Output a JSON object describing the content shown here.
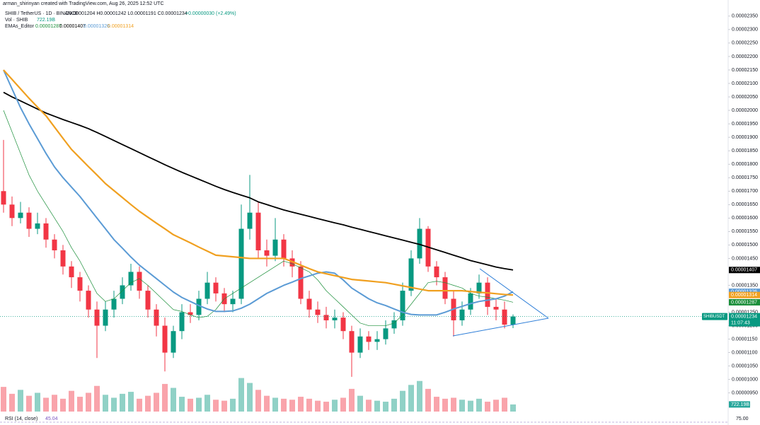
{
  "chart_data": {
    "type": "candlestick",
    "header": "arman_shirinyan created with TradingView.com, Aug 26, 2025 12:52 UTC",
    "symbol": "SHIB / TetherUS · 1D · BINANCE",
    "ohlc_text": "O0.00001204 H0.00001242 L0.00001191 C0.00001234",
    "change_text": "+0.00000030 (+2.49%)",
    "indicator_name": "EMAs_Editor",
    "volume_name": "Vol · SHIB",
    "rsi_name": "RSI (14, close)",
    "rsi_value": "45.04",
    "rsi_tick": "75.00",
    "last_price": {
      "symbol_label": "SHIBUSDT",
      "label": "0.00001234",
      "countdown": "11:07:43"
    },
    "up_color": "#089981",
    "down_color": "#f23645",
    "grid": false,
    "ylim": [
      8.6e-06,
      2.41e-05
    ],
    "yticks": [
      {
        "value": 2.35e-05,
        "label": "0.00002350"
      },
      {
        "value": 2.3e-05,
        "label": "0.00002300"
      },
      {
        "value": 2.25e-05,
        "label": "0.00002250"
      },
      {
        "value": 2.2e-05,
        "label": "0.00002200"
      },
      {
        "value": 2.15e-05,
        "label": "0.00002150"
      },
      {
        "value": 2.1e-05,
        "label": "0.00002100"
      },
      {
        "value": 2.05e-05,
        "label": "0.00002050"
      },
      {
        "value": 2e-05,
        "label": "0.00002000"
      },
      {
        "value": 1.95e-05,
        "label": "0.00001950"
      },
      {
        "value": 1.9e-05,
        "label": "0.00001900"
      },
      {
        "value": 1.85e-05,
        "label": "0.00001850"
      },
      {
        "value": 1.8e-05,
        "label": "0.00001800"
      },
      {
        "value": 1.75e-05,
        "label": "0.00001750"
      },
      {
        "value": 1.7e-05,
        "label": "0.00001700"
      },
      {
        "value": 1.65e-05,
        "label": "0.00001650"
      },
      {
        "value": 1.6e-05,
        "label": "0.00001600"
      },
      {
        "value": 1.55e-05,
        "label": "0.00001550"
      },
      {
        "value": 1.5e-05,
        "label": "0.00001500"
      },
      {
        "value": 1.45e-05,
        "label": "0.00001450"
      },
      {
        "value": 1.35e-05,
        "label": "0.00001350"
      },
      {
        "value": 1.25e-05,
        "label": "0.00001250"
      },
      {
        "value": 1.2e-05,
        "label": "0.00001200"
      },
      {
        "value": 1.15e-05,
        "label": "0.00001150"
      },
      {
        "value": 1.1e-05,
        "label": "0.00001100"
      },
      {
        "value": 1.05e-05,
        "label": "0.00001050"
      },
      {
        "value": 1e-05,
        "label": "0.00001000"
      },
      {
        "value": 9.5e-06,
        "label": "0.00000950"
      }
    ],
    "candles": {
      "open": [
        1.7e-05,
        1.65e-05,
        1.6e-05,
        1.62e-05,
        1.56e-05,
        1.58e-05,
        1.52e-05,
        1.48e-05,
        1.42e-05,
        1.38e-05,
        1.33e-05,
        1.26e-05,
        1.2e-05,
        1.26e-05,
        1.3e-05,
        1.35e-05,
        1.4e-05,
        1.33e-05,
        1.26e-05,
        1.2e-05,
        1.1e-05,
        1.18e-05,
        1.25e-05,
        1.24e-05,
        1.3e-05,
        1.36e-05,
        1.32e-05,
        1.28e-05,
        1.3e-05,
        1.56e-05,
        1.62e-05,
        1.48e-05,
        1.46e-05,
        1.52e-05,
        1.45e-05,
        1.42e-05,
        1.3e-05,
        1.26e-05,
        1.24e-05,
        1.22e-05,
        1.23e-05,
        1.18e-05,
        1.1e-05,
        1.16e-05,
        1.14e-05,
        1.15e-05,
        1.19e-05,
        1.22e-05,
        1.33e-05,
        1.45e-05,
        1.56e-05,
        1.42e-05,
        1.38e-05,
        1.3e-05,
        1.22e-05,
        1.26e-05,
        1.32e-05,
        1.36e-05,
        1.27e-05,
        1.26e-05,
        1.204e-05
      ],
      "high": [
        1.89e-05,
        1.68e-05,
        1.66e-05,
        1.64e-05,
        1.62e-05,
        1.6e-05,
        1.54e-05,
        1.5e-05,
        1.44e-05,
        1.4e-05,
        1.35e-05,
        1.29e-05,
        1.29e-05,
        1.33e-05,
        1.38e-05,
        1.43e-05,
        1.42e-05,
        1.35e-05,
        1.28e-05,
        1.23e-05,
        1.2e-05,
        1.28e-05,
        1.28e-05,
        1.33e-05,
        1.4e-05,
        1.38e-05,
        1.34e-05,
        1.33e-05,
        1.65e-05,
        1.76e-05,
        1.66e-05,
        1.52e-05,
        1.6e-05,
        1.54e-05,
        1.48e-05,
        1.44e-05,
        1.33e-05,
        1.29e-05,
        1.27e-05,
        1.26e-05,
        1.25e-05,
        1.2e-05,
        1.19e-05,
        1.18e-05,
        1.18e-05,
        1.22e-05,
        1.25e-05,
        1.36e-05,
        1.48e-05,
        1.6e-05,
        1.57e-05,
        1.44e-05,
        1.4e-05,
        1.33e-05,
        1.29e-05,
        1.34e-05,
        1.39e-05,
        1.38e-05,
        1.3e-05,
        1.29e-05,
        1.242e-05
      ],
      "low": [
        1.62e-05,
        1.57e-05,
        1.58e-05,
        1.53e-05,
        1.54e-05,
        1.49e-05,
        1.45e-05,
        1.39e-05,
        1.34e-05,
        1.29e-05,
        1.23e-05,
        1.08e-05,
        1.18e-05,
        1.23e-05,
        1.28e-05,
        1.33e-05,
        1.3e-05,
        1.23e-05,
        1.16e-05,
        1.03e-05,
        1.08e-05,
        1.15e-05,
        1.21e-05,
        1.22e-05,
        1.28e-05,
        1.29e-05,
        1.25e-05,
        1.25e-05,
        1.28e-05,
        1.52e-05,
        1.45e-05,
        1.42e-05,
        1.44e-05,
        1.42e-05,
        1.38e-05,
        1.28e-05,
        1.23e-05,
        1.21e-05,
        1.19e-05,
        1.19e-05,
        1.15e-05,
        1.01e-05,
        1.08e-05,
        1.11e-05,
        1.11e-05,
        1.13e-05,
        1.17e-05,
        1.2e-05,
        1.31e-05,
        1.43e-05,
        1.4e-05,
        1.35e-05,
        1.28e-05,
        1.16e-05,
        1.2e-05,
        1.24e-05,
        1.3e-05,
        1.24e-05,
        1.22e-05,
        1.19e-05,
        1.191e-05
      ],
      "close": [
        1.65e-05,
        1.6e-05,
        1.62e-05,
        1.56e-05,
        1.58e-05,
        1.52e-05,
        1.48e-05,
        1.42e-05,
        1.38e-05,
        1.33e-05,
        1.26e-05,
        1.2e-05,
        1.26e-05,
        1.3e-05,
        1.35e-05,
        1.4e-05,
        1.33e-05,
        1.26e-05,
        1.2e-05,
        1.1e-05,
        1.18e-05,
        1.25e-05,
        1.24e-05,
        1.3e-05,
        1.36e-05,
        1.32e-05,
        1.28e-05,
        1.3e-05,
        1.56e-05,
        1.62e-05,
        1.48e-05,
        1.46e-05,
        1.52e-05,
        1.45e-05,
        1.42e-05,
        1.3e-05,
        1.26e-05,
        1.24e-05,
        1.22e-05,
        1.23e-05,
        1.18e-05,
        1.1e-05,
        1.16e-05,
        1.14e-05,
        1.15e-05,
        1.19e-05,
        1.22e-05,
        1.33e-05,
        1.45e-05,
        1.56e-05,
        1.42e-05,
        1.38e-05,
        1.3e-05,
        1.22e-05,
        1.26e-05,
        1.32e-05,
        1.36e-05,
        1.27e-05,
        1.26e-05,
        1.204e-05,
        1.234e-05
      ]
    },
    "volume": {
      "vlim": [
        0,
        4300000000000.0
      ],
      "values": [
        2500000000000.0,
        1800000000000.0,
        2200000000000.0,
        1600000000000.0,
        1900000000000.0,
        1400000000000.0,
        1700000000000.0,
        1300000000000.0,
        2100000000000.0,
        1500000000000.0,
        1900000000000.0,
        2600000000000.0,
        1700000000000.0,
        1400000000000.0,
        1800000000000.0,
        2000000000000.0,
        1300000000000.0,
        1600000000000.0,
        1900000000000.0,
        2800000000000.0,
        2400000000000.0,
        1500000000000.0,
        1300000000000.0,
        1400000000000.0,
        1700000000000.0,
        1200000000000.0,
        1100000000000.0,
        1300000000000.0,
        3400000000000.0,
        2900000000000.0,
        2200000000000.0,
        1600000000000.0,
        1400000000000.0,
        1300000000000.0,
        1200000000000.0,
        1500000000000.0,
        1300000000000.0,
        1100000000000.0,
        1000000000000.0,
        1200000000000.0,
        1400000000000.0,
        2300000000000.0,
        1600000000000.0,
        1200000000000.0,
        1100000000000.0,
        1000000000000.0,
        1300000000000.0,
        2100000000000.0,
        2700000000000.0,
        3100000000000.0,
        2300000000000.0,
        1500000000000.0,
        1300000000000.0,
        1400000000000.0,
        1200000000000.0,
        1100000000000.0,
        1300000000000.0,
        1000000000000.0,
        1200000000000.0,
        1400000000000.0,
        722190000000.0
      ],
      "last_label": "722.19B"
    },
    "series": [
      {
        "color": "#1b8f3a",
        "width": 0.7,
        "last_label": "0.00001287",
        "values": [
          2e-05,
          1.92e-05,
          1.84e-05,
          1.76e-05,
          1.7e-05,
          1.65e-05,
          1.6e-05,
          1.55e-05,
          1.49e-05,
          1.44e-05,
          1.38e-05,
          1.32e-05,
          1.29e-05,
          1.3e-05,
          1.33e-05,
          1.36e-05,
          1.375e-05,
          1.35e-05,
          1.32e-05,
          1.29e-05,
          1.26e-05,
          1.253e-05,
          1.24e-05,
          1.23e-05,
          1.235e-05,
          1.26e-05,
          1.3e-05,
          1.32e-05,
          1.34e-05,
          1.36e-05,
          1.38e-05,
          1.4e-05,
          1.42e-05,
          1.44e-05,
          1.43e-05,
          1.415e-05,
          1.4e-05,
          1.37e-05,
          1.33e-05,
          1.3e-05,
          1.27e-05,
          1.24e-05,
          1.21e-05,
          1.2e-05,
          1.2e-05,
          1.2e-05,
          1.21e-05,
          1.24e-05,
          1.28e-05,
          1.32e-05,
          1.36e-05,
          1.365e-05,
          1.36e-05,
          1.35e-05,
          1.34e-05,
          1.32e-05,
          1.31e-05,
          1.306e-05,
          1.3e-05,
          1.295e-05,
          1.287e-05
        ]
      },
      {
        "color": "#000000",
        "width": 1.8,
        "last_label": "0.00001407",
        "values": [
          2.067e-05,
          2.05e-05,
          2.035e-05,
          2.02e-05,
          2.005e-05,
          1.99e-05,
          1.978e-05,
          1.966e-05,
          1.955e-05,
          1.944e-05,
          1.932e-05,
          1.918e-05,
          1.903e-05,
          1.888e-05,
          1.873e-05,
          1.858e-05,
          1.843e-05,
          1.828e-05,
          1.813e-05,
          1.798e-05,
          1.784e-05,
          1.77e-05,
          1.757e-05,
          1.744e-05,
          1.731e-05,
          1.718e-05,
          1.706e-05,
          1.695e-05,
          1.685e-05,
          1.675e-05,
          1.66e-05,
          1.65e-05,
          1.64e-05,
          1.63e-05,
          1.622e-05,
          1.614e-05,
          1.606e-05,
          1.598e-05,
          1.59e-05,
          1.582e-05,
          1.575e-05,
          1.566e-05,
          1.558e-05,
          1.55e-05,
          1.542e-05,
          1.534e-05,
          1.526e-05,
          1.518e-05,
          1.51e-05,
          1.502e-05,
          1.492e-05,
          1.482e-05,
          1.472e-05,
          1.462e-05,
          1.452e-05,
          1.442e-05,
          1.434e-05,
          1.426e-05,
          1.418e-05,
          1.412e-05,
          1.407e-05
        ]
      },
      {
        "color": "#5b9bd5",
        "width": 2,
        "last_label": "0.00001326",
        "values": [
          2.15e-05,
          2.08e-05,
          2.01e-05,
          1.95e-05,
          1.895e-05,
          1.84e-05,
          1.79e-05,
          1.75e-05,
          1.715e-05,
          1.68e-05,
          1.64e-05,
          1.6e-05,
          1.56e-05,
          1.52e-05,
          1.488e-05,
          1.455e-05,
          1.425e-05,
          1.4e-05,
          1.375e-05,
          1.35e-05,
          1.325e-05,
          1.305e-05,
          1.29e-05,
          1.275e-05,
          1.262e-05,
          1.253e-05,
          1.253e-05,
          1.255e-05,
          1.265e-05,
          1.28e-05,
          1.3e-05,
          1.32e-05,
          1.335e-05,
          1.35e-05,
          1.362e-05,
          1.375e-05,
          1.385e-05,
          1.395e-05,
          1.4e-05,
          1.395e-05,
          1.37e-05,
          1.34e-05,
          1.32e-05,
          1.3e-05,
          1.285e-05,
          1.275e-05,
          1.262e-05,
          1.25e-05,
          1.242e-05,
          1.24e-05,
          1.24e-05,
          1.24e-05,
          1.25e-05,
          1.262e-05,
          1.272e-05,
          1.282e-05,
          1.29e-05,
          1.295e-05,
          1.3e-05,
          1.31e-05,
          1.326e-05
        ]
      },
      {
        "color": "#f0a020",
        "width": 2.2,
        "last_label": "0.00001314",
        "values": [
          2.15e-05,
          2.115e-05,
          2.08e-05,
          2.045e-05,
          2.012e-05,
          1.98e-05,
          1.938e-05,
          1.896e-05,
          1.855e-05,
          1.823e-05,
          1.791e-05,
          1.76e-05,
          1.728e-05,
          1.702e-05,
          1.676e-05,
          1.65e-05,
          1.625e-05,
          1.603e-05,
          1.581e-05,
          1.56e-05,
          1.538e-05,
          1.523e-05,
          1.508e-05,
          1.492e-05,
          1.477e-05,
          1.462e-05,
          1.459e-05,
          1.456e-05,
          1.453e-05,
          1.45e-05,
          1.45e-05,
          1.45e-05,
          1.45e-05,
          1.45e-05,
          1.438e-05,
          1.425e-05,
          1.412e-05,
          1.4e-05,
          1.393e-05,
          1.386e-05,
          1.379e-05,
          1.372e-05,
          1.369e-05,
          1.366e-05,
          1.363e-05,
          1.36e-05,
          1.354e-05,
          1.348e-05,
          1.342e-05,
          1.336e-05,
          1.33e-05,
          1.33e-05,
          1.33e-05,
          1.33e-05,
          1.33e-05,
          1.327e-05,
          1.324e-05,
          1.322e-05,
          1.319e-05,
          1.316e-05,
          1.314e-05
        ]
      }
    ]
  }
}
